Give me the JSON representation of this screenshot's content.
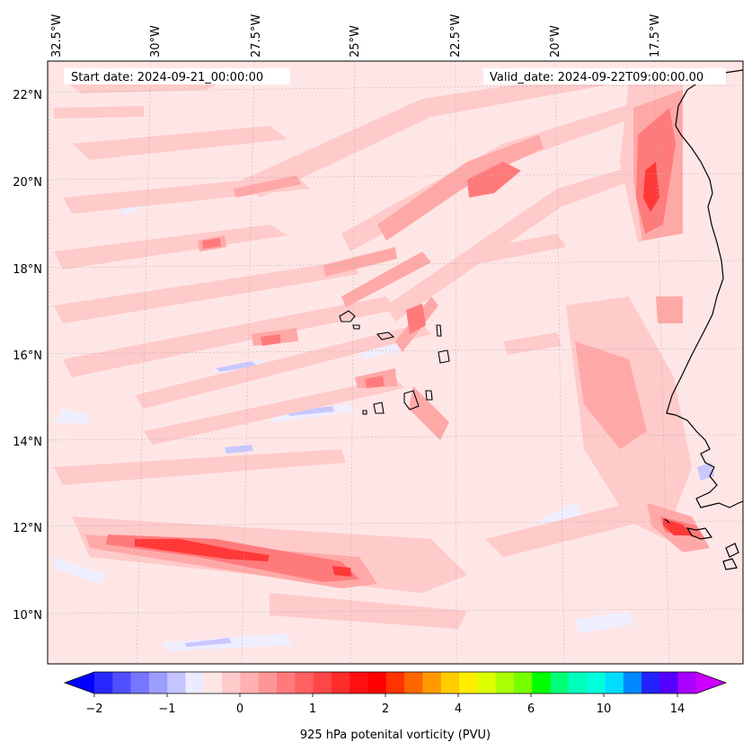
{
  "header": {
    "start_date": "Start date: 2024-09-21_00:00:00",
    "valid_date": "Valid_date: 2024-09-22T09:00:00.00"
  },
  "map": {
    "projection": "lambert-conformal",
    "lon_range": [
      -32.7,
      -15.0
    ],
    "lat_range": [
      8.9,
      22.8
    ],
    "gridlines": true,
    "lon_labels": [
      "32.5°W",
      "30°W",
      "27.5°W",
      "25°W",
      "22.5°W",
      "20°W",
      "17.5°W"
    ],
    "lat_labels": [
      "22°N",
      "20°N",
      "18°N",
      "16°N",
      "14°N",
      "12°N",
      "10°N"
    ],
    "background_color": "#ffe6e6",
    "coastline_color": "#000000"
  },
  "colorbar": {
    "label": "925 hPa potenital vorticity (PVU)",
    "tick_labels": [
      "−2",
      "−1",
      "0",
      "1",
      "2",
      "4",
      "6",
      "10",
      "14"
    ],
    "colors": [
      "#0000ff",
      "#2727ff",
      "#4f4fff",
      "#7676ff",
      "#9d9dff",
      "#c4c4ff",
      "#ecebff",
      "#ffe6e6",
      "#ffcaca",
      "#ffb0b0",
      "#ff9696",
      "#ff7b7b",
      "#ff6161",
      "#ff4646",
      "#ff2c2c",
      "#ff1010",
      "#ff0000",
      "#ff3300",
      "#ff6600",
      "#ff9900",
      "#ffcc00",
      "#ffee00",
      "#ddff00",
      "#aaff00",
      "#77ff00",
      "#00ff00",
      "#00ff77",
      "#00ffbb",
      "#00ffdd",
      "#00ddff",
      "#0088ff",
      "#2222ff",
      "#5500ff",
      "#aa00ff",
      "#cc00ff"
    ],
    "extend": "both"
  },
  "features": {
    "high_pv_colors": {
      "light": "#ffcaca",
      "mid": "#ffa8a8",
      "strong": "#ff7b7b",
      "intense": "#ff3838"
    },
    "low_pv_color": "#c8c8ff"
  }
}
